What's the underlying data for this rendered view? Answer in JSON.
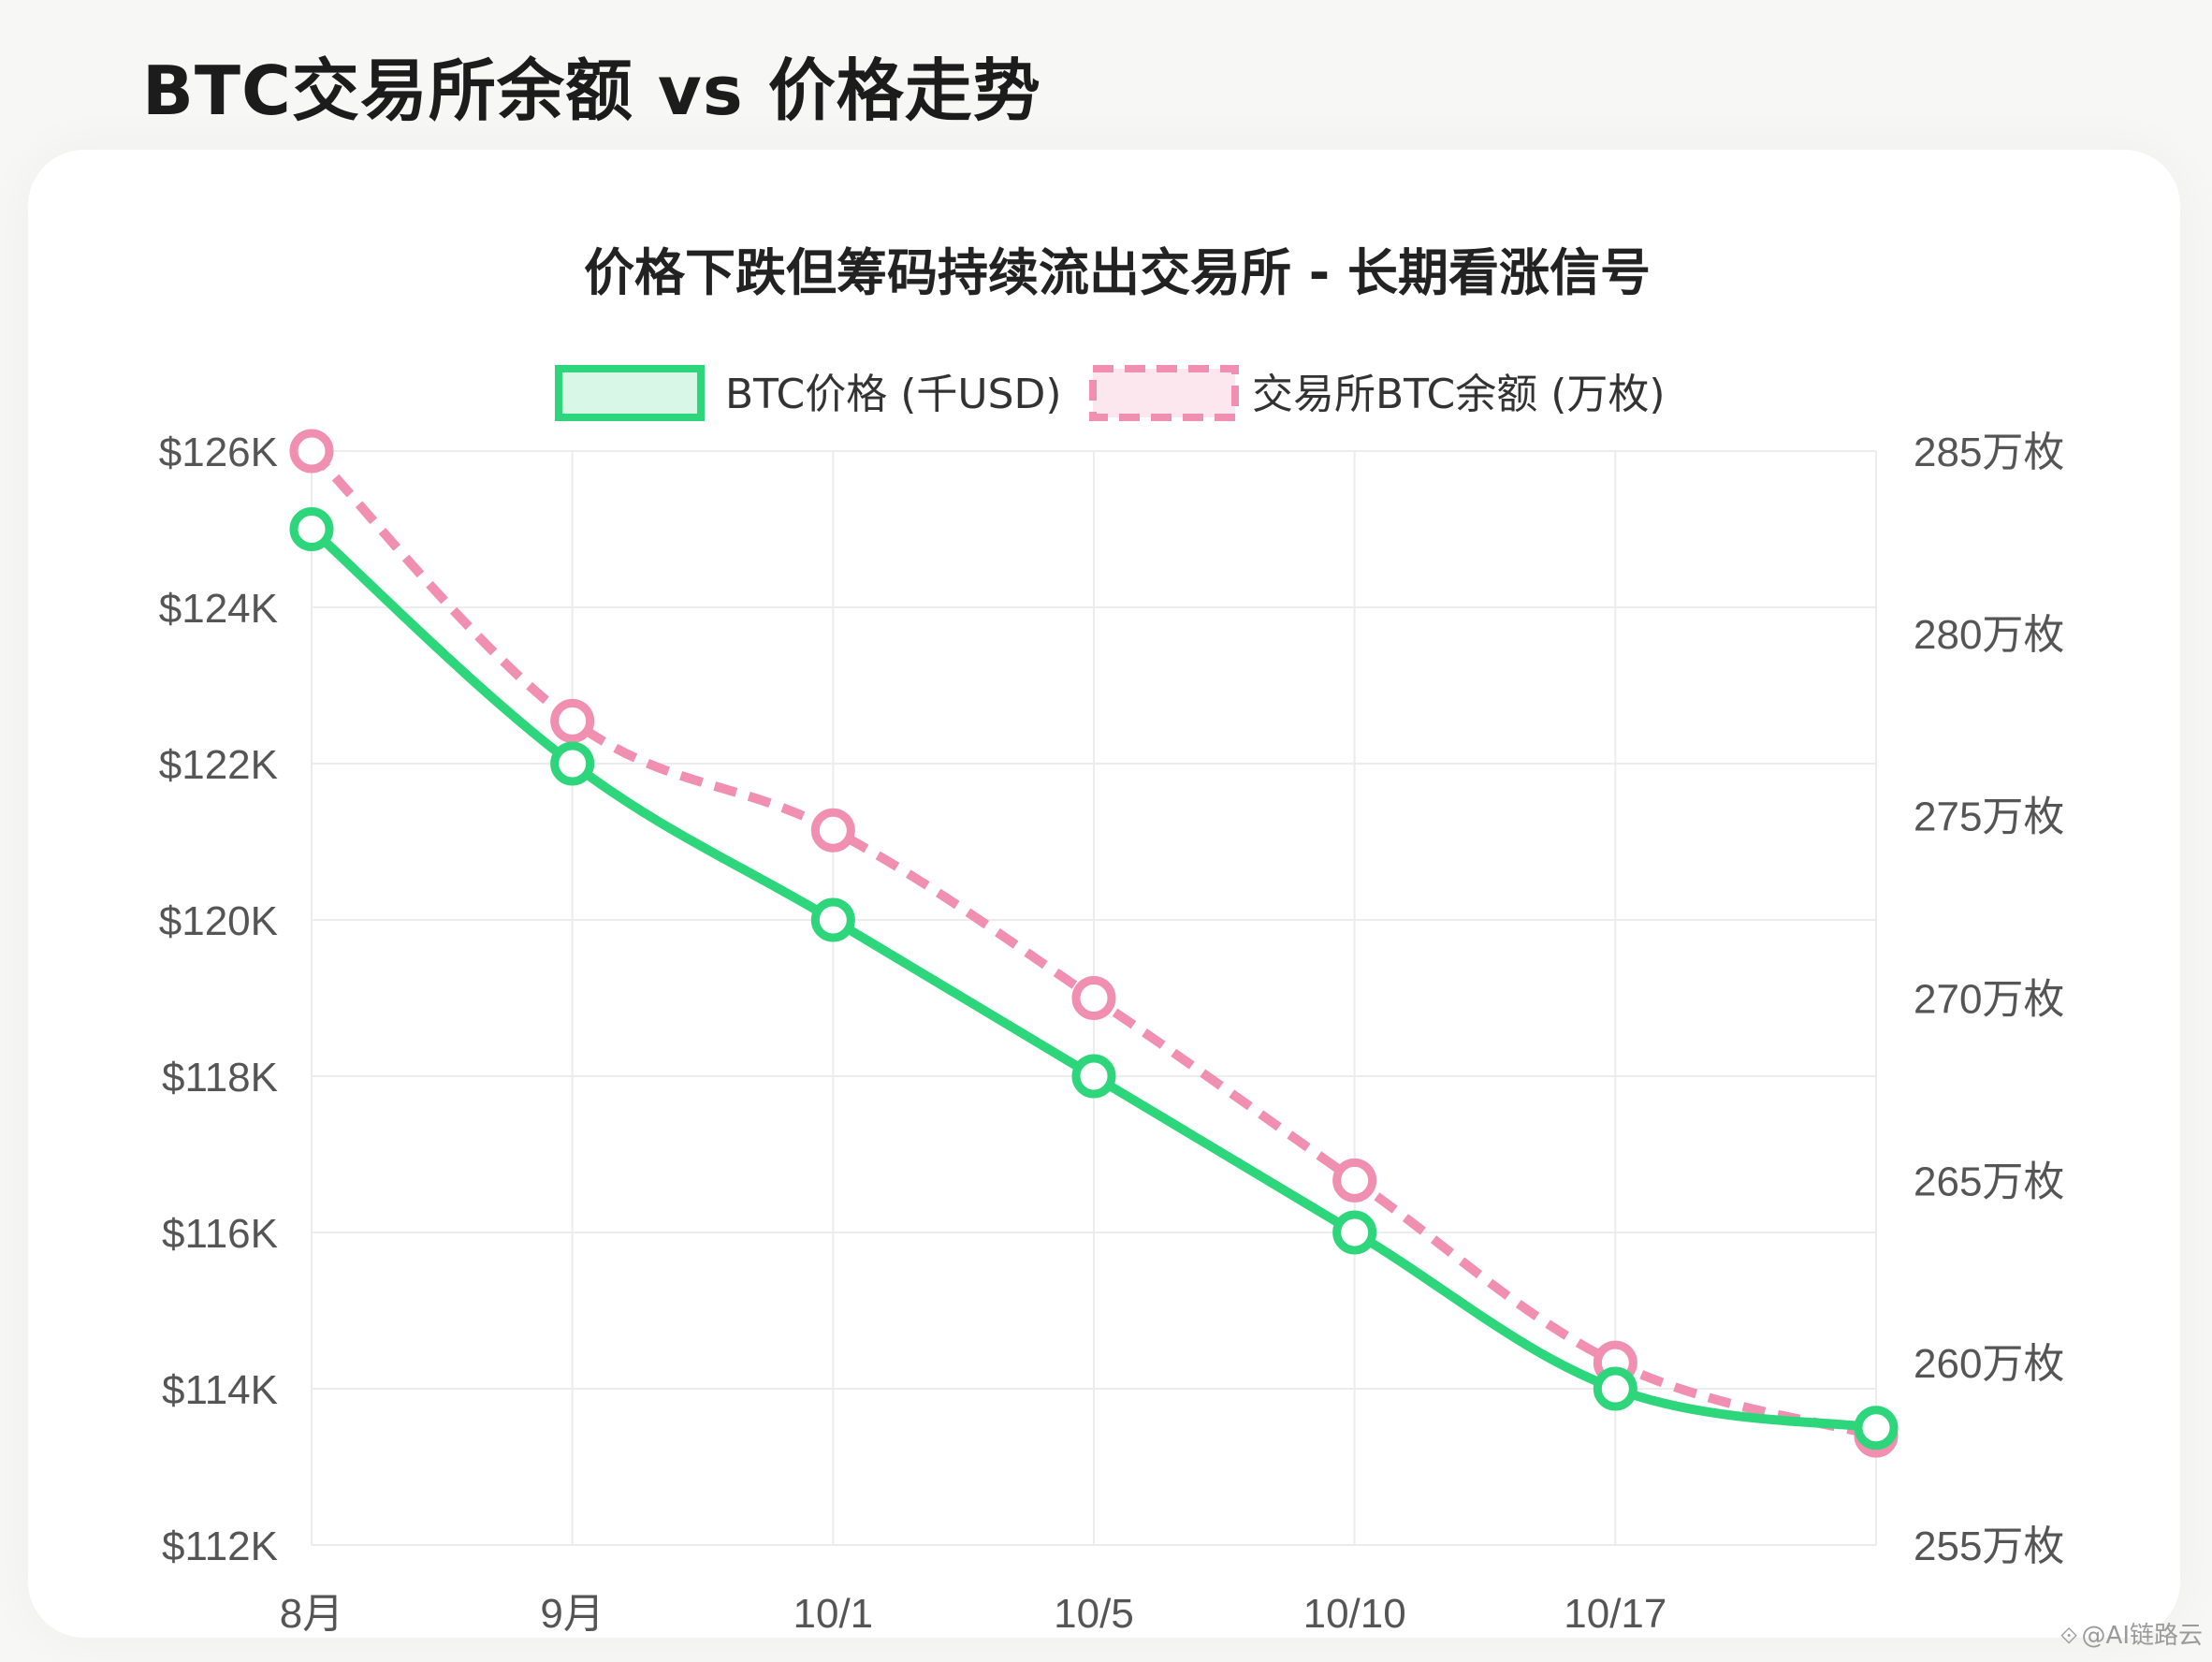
{
  "page_title": "BTC交易所余额 vs 价格走势",
  "watermark": "@AI链路云",
  "chart_data": {
    "type": "line",
    "title": "价格下跌但筹码持续流出交易所 - 长期看涨信号",
    "categories": [
      "8月",
      "9月",
      "10/1",
      "10/5",
      "10/10",
      "10/17",
      ""
    ],
    "legend_position": "top-center",
    "grid": true,
    "y_left": {
      "ticks": [
        "$126K",
        "$124K",
        "$122K",
        "$120K",
        "$118K",
        "$116K",
        "$114K",
        "$112K"
      ],
      "range": [
        112,
        126
      ]
    },
    "y_right": {
      "ticks": [
        "285万枚",
        "280万枚",
        "275万枚",
        "270万枚",
        "265万枚",
        "260万枚",
        "255万枚"
      ],
      "range": [
        255,
        285
      ]
    },
    "series": [
      {
        "name": "BTC价格 (千USD)",
        "axis": "left",
        "color": "#2ed67b",
        "fill": "#d9f7e7",
        "style": "solid",
        "values": [
          125,
          122,
          120,
          118,
          116,
          114,
          113.5
        ]
      },
      {
        "name": "交易所BTC余额 (万枚)",
        "axis": "right",
        "color": "#f08fb0",
        "fill": "#fde7ef",
        "style": "dashed",
        "values": [
          285,
          277.6,
          274.6,
          270,
          265,
          260,
          258
        ]
      }
    ]
  }
}
